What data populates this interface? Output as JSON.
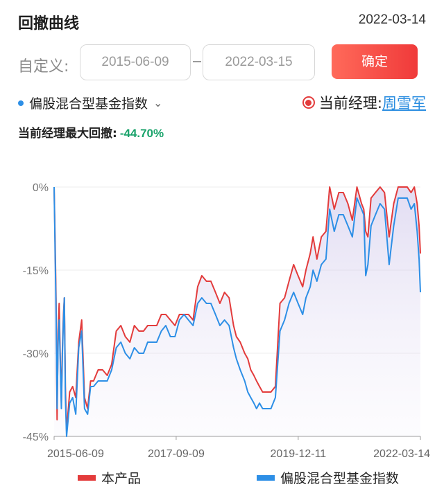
{
  "header": {
    "title": "回撤曲线",
    "date": "2022-03-14"
  },
  "range": {
    "label": "自定义:",
    "start": "2015-06-09",
    "end": "2022-03-15",
    "confirm": "确定"
  },
  "index_selector": {
    "label": "偏股混合型基金指数"
  },
  "manager": {
    "label": "当前经理:",
    "name": "周雪军"
  },
  "drawdown": {
    "label": "当前经理最大回撤:",
    "value": "-44.70%"
  },
  "colors": {
    "product": "#e33b3b",
    "index": "#2d8fe6",
    "confirm": "#f04a3e",
    "drawdown_value": "#1aa36b"
  },
  "chart_data": {
    "type": "line",
    "y_tick_labels": [
      "0%",
      "-15%",
      "-30%",
      "-45%"
    ],
    "y_ticks": [
      0,
      -15,
      -30,
      -45
    ],
    "ylim": [
      -45,
      0
    ],
    "x_tick_labels": [
      "2015-06-09",
      "2017-09-09",
      "2019-12-11",
      "2022-03-14"
    ],
    "x_ticks": [
      "2015-06-09",
      "2017-09-09",
      "2019-12-11",
      "2022-03-14"
    ],
    "xlim": [
      "2015-06-09",
      "2022-03-14"
    ],
    "series": [
      {
        "name": "本产品",
        "x": [
          "2015-06-09",
          "2015-06-16",
          "2015-06-22",
          "2015-06-29",
          "2015-07-06",
          "2015-07-13",
          "2015-07-20",
          "2015-07-28",
          "2015-08-04",
          "2015-08-11",
          "2015-08-17",
          "2015-08-24",
          "2015-09-01",
          "2015-09-22",
          "2015-10-12",
          "2015-11-02",
          "2015-11-22",
          "2015-12-12",
          "2015-12-31",
          "2016-01-21",
          "2016-02-10",
          "2016-03-01",
          "2016-04-01",
          "2016-05-01",
          "2016-06-01",
          "2016-07-01",
          "2016-08-01",
          "2016-09-01",
          "2016-10-01",
          "2016-11-01",
          "2016-12-01",
          "2017-01-01",
          "2017-02-01",
          "2017-03-01",
          "2017-04-01",
          "2017-05-01",
          "2017-06-01",
          "2017-07-01",
          "2017-08-01",
          "2017-09-01",
          "2017-10-01",
          "2017-11-01",
          "2017-12-01",
          "2018-01-01",
          "2018-02-01",
          "2018-03-01",
          "2018-04-01",
          "2018-05-01",
          "2018-06-01",
          "2018-07-01",
          "2018-08-01",
          "2018-09-01",
          "2018-10-01",
          "2018-10-20",
          "2018-11-15",
          "2018-12-15",
          "2019-01-05",
          "2019-01-25",
          "2019-02-15",
          "2019-03-05",
          "2019-03-25",
          "2019-04-15",
          "2019-05-10",
          "2019-06-10",
          "2019-07-10",
          "2019-08-10",
          "2019-09-10",
          "2019-10-10",
          "2019-11-10",
          "2019-12-10",
          "2020-01-10",
          "2020-02-01",
          "2020-03-01",
          "2020-03-20",
          "2020-04-15",
          "2020-05-15",
          "2020-06-15",
          "2020-07-10",
          "2020-08-10",
          "2020-09-10",
          "2020-10-10",
          "2020-11-10",
          "2020-12-10",
          "2021-01-10",
          "2021-02-10",
          "2021-02-25",
          "2021-03-10",
          "2021-03-25",
          "2021-04-15",
          "2021-05-15",
          "2021-06-15",
          "2021-07-15",
          "2021-08-15",
          "2021-09-15",
          "2021-10-15",
          "2021-11-15",
          "2021-12-15",
          "2022-01-10",
          "2022-02-01",
          "2022-02-20",
          "2022-03-05",
          "2022-03-14"
        ],
        "values": [
          0,
          -10,
          -20,
          -42,
          -26,
          -21,
          -30,
          -39,
          -29,
          -23,
          -20,
          -36,
          -44,
          -37,
          -36,
          -38,
          -28,
          -24,
          -38,
          -40,
          -35,
          -35,
          -33,
          -33,
          -34,
          -32,
          -26,
          -25,
          -27,
          -28,
          -25,
          -26,
          -26,
          -25,
          -25,
          -25,
          -23,
          -23,
          -24,
          -25,
          -23,
          -23,
          -23,
          -24,
          -18,
          -16,
          -17,
          -17,
          -19,
          -21,
          -19,
          -20,
          -25,
          -27,
          -28,
          -30,
          -31,
          -33,
          -34,
          -35,
          -36,
          -37,
          -37,
          -37,
          -36,
          -21,
          -20,
          -17,
          -14,
          -16,
          -18,
          -15,
          -12,
          -9,
          -13,
          -9,
          -8,
          0,
          -4,
          -1,
          -1,
          -3,
          -6,
          0,
          -3,
          -4,
          -8,
          -9,
          -2,
          -1,
          0,
          -1,
          -9,
          -3,
          0,
          0,
          0,
          -1,
          0,
          -3,
          -7,
          -12
        ]
      },
      {
        "name": "偏股混合型基金指数",
        "x": [
          "2015-06-09",
          "2015-06-16",
          "2015-06-22",
          "2015-06-29",
          "2015-07-06",
          "2015-07-13",
          "2015-07-20",
          "2015-07-28",
          "2015-08-04",
          "2015-08-11",
          "2015-08-17",
          "2015-08-24",
          "2015-09-01",
          "2015-09-22",
          "2015-10-12",
          "2015-11-02",
          "2015-11-22",
          "2015-12-12",
          "2015-12-31",
          "2016-01-21",
          "2016-02-10",
          "2016-03-01",
          "2016-04-01",
          "2016-05-01",
          "2016-06-01",
          "2016-07-01",
          "2016-08-01",
          "2016-09-01",
          "2016-10-01",
          "2016-11-01",
          "2016-12-01",
          "2017-01-01",
          "2017-02-01",
          "2017-03-01",
          "2017-04-01",
          "2017-05-01",
          "2017-06-01",
          "2017-07-01",
          "2017-08-01",
          "2017-09-01",
          "2017-10-01",
          "2017-11-01",
          "2017-12-01",
          "2018-01-01",
          "2018-02-01",
          "2018-03-01",
          "2018-04-01",
          "2018-05-01",
          "2018-06-01",
          "2018-07-01",
          "2018-08-01",
          "2018-09-01",
          "2018-10-01",
          "2018-10-20",
          "2018-11-15",
          "2018-12-15",
          "2019-01-05",
          "2019-01-25",
          "2019-02-15",
          "2019-03-05",
          "2019-03-25",
          "2019-04-15",
          "2019-05-10",
          "2019-06-10",
          "2019-07-10",
          "2019-08-10",
          "2019-09-10",
          "2019-10-10",
          "2019-11-10",
          "2019-12-10",
          "2020-01-10",
          "2020-02-01",
          "2020-03-01",
          "2020-03-20",
          "2020-04-15",
          "2020-05-15",
          "2020-06-15",
          "2020-07-10",
          "2020-08-10",
          "2020-09-10",
          "2020-10-10",
          "2020-11-10",
          "2020-12-10",
          "2021-01-10",
          "2021-02-10",
          "2021-02-25",
          "2021-03-10",
          "2021-03-25",
          "2021-04-15",
          "2021-05-15",
          "2021-06-15",
          "2021-07-15",
          "2021-08-15",
          "2021-09-15",
          "2021-10-15",
          "2021-11-15",
          "2021-12-15",
          "2022-01-10",
          "2022-02-01",
          "2022-02-20",
          "2022-03-05",
          "2022-03-14"
        ],
        "values": [
          0,
          -12,
          -22,
          -40,
          -28,
          -24,
          -31,
          -40,
          -30,
          -24,
          -20,
          -38,
          -45,
          -39,
          -38,
          -41,
          -29,
          -26,
          -40,
          -41,
          -36,
          -36,
          -35,
          -35,
          -35,
          -33,
          -29,
          -28,
          -30,
          -31,
          -29,
          -30,
          -30,
          -28,
          -28,
          -28,
          -26,
          -25,
          -27,
          -27,
          -24,
          -23,
          -24,
          -25,
          -21,
          -20,
          -21,
          -21,
          -23,
          -25,
          -24,
          -25,
          -29,
          -31,
          -33,
          -35,
          -37,
          -38,
          -39,
          -40,
          -39,
          -40,
          -40,
          -40,
          -38,
          -26,
          -24,
          -21,
          -19,
          -21,
          -23,
          -20,
          -18,
          -15,
          -17,
          -14,
          -13,
          -4,
          -8,
          -5,
          -5,
          -7,
          -9,
          -2,
          -4,
          -5,
          -16,
          -14,
          -7,
          -5,
          -3,
          -4,
          -14,
          -7,
          -2,
          -2,
          -2,
          -4,
          -3,
          -8,
          -13,
          -19
        ]
      }
    ]
  },
  "legend": {
    "product": "本产品",
    "index": "偏股混合型基金指数"
  }
}
